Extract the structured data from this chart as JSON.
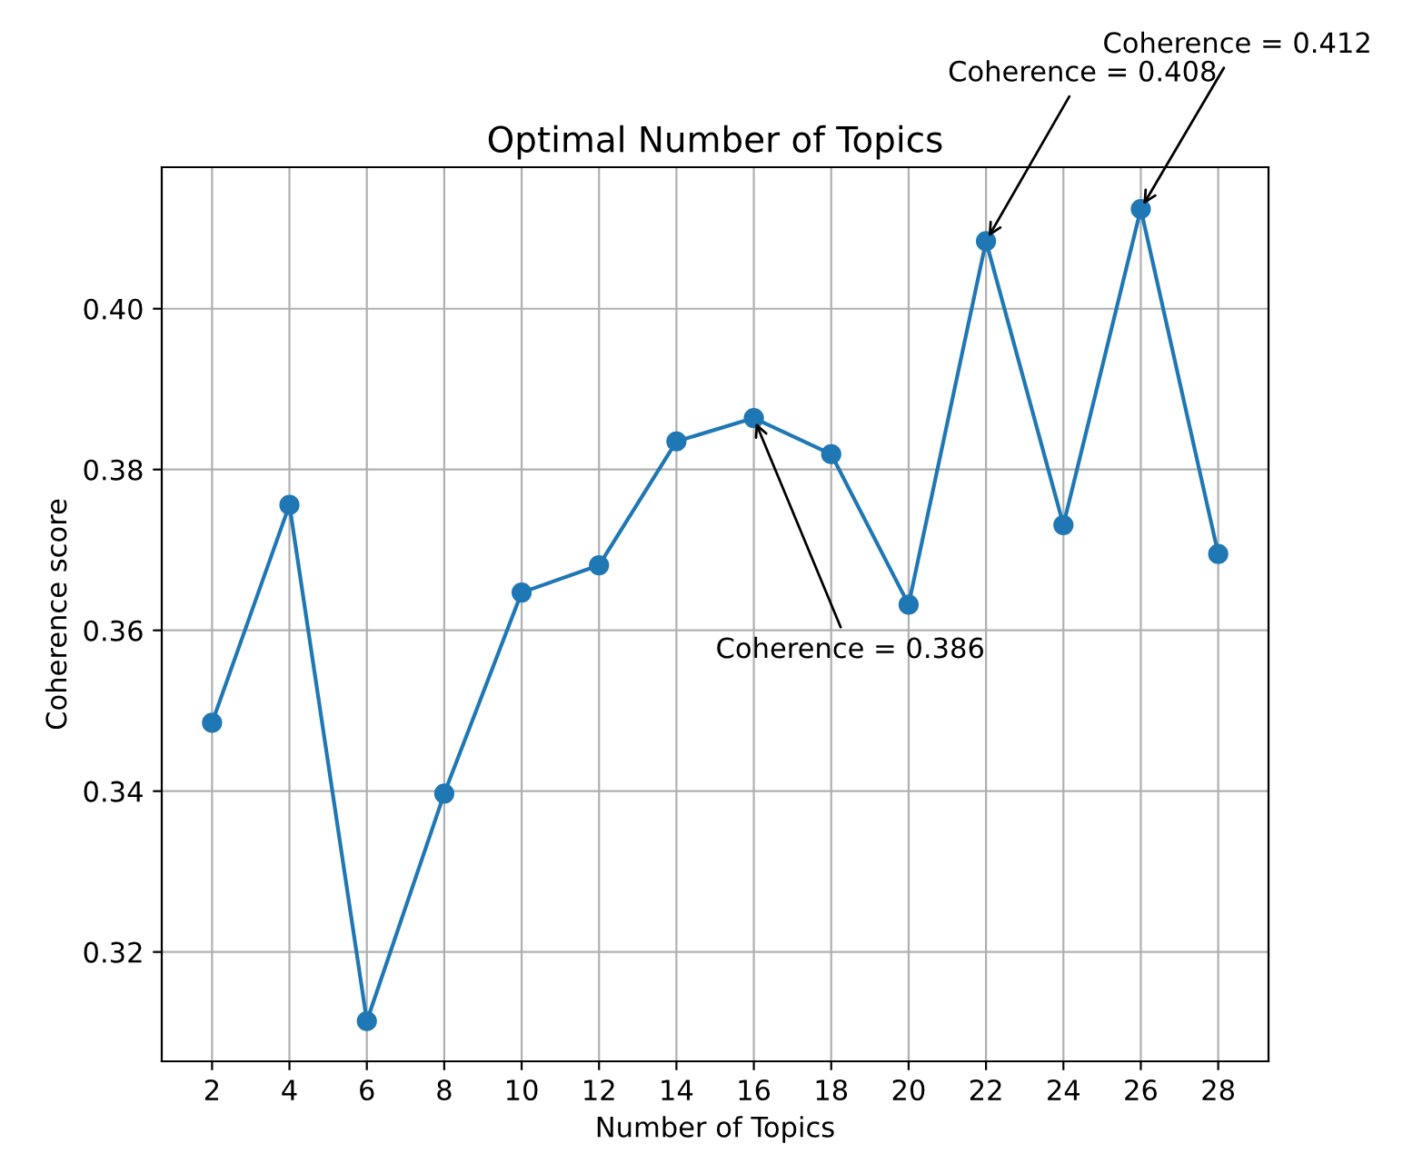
{
  "chart_data": {
    "type": "line",
    "title": "Optimal Number of Topics",
    "xlabel": "Number of Topics",
    "ylabel": "Coherence score",
    "x": [
      2,
      4,
      6,
      8,
      10,
      12,
      14,
      16,
      18,
      20,
      22,
      24,
      26,
      28
    ],
    "series": [
      {
        "color": "#1f77b4",
        "values": [
          0.3485,
          0.3756,
          0.3114,
          0.3397,
          0.3647,
          0.3681,
          0.3835,
          0.3864,
          0.3819,
          0.3632,
          0.4084,
          0.3731,
          0.4124,
          0.3695
        ]
      }
    ],
    "xlim": [
      0.7,
      29.3
    ],
    "ylim": [
      0.3064,
      0.4176
    ],
    "xticks": [
      2,
      4,
      6,
      8,
      10,
      12,
      14,
      16,
      18,
      20,
      22,
      24,
      26,
      28
    ],
    "yticks": [
      {
        "value": 0.32,
        "label": "0.32"
      },
      {
        "value": 0.34,
        "label": "0.34"
      },
      {
        "value": 0.36,
        "label": "0.36"
      },
      {
        "value": 0.38,
        "label": "0.38"
      },
      {
        "value": 0.4,
        "label": "0.40"
      }
    ],
    "annotations": [
      {
        "text": "Coherence = 0.386",
        "x": 16,
        "y": 0.3864
      },
      {
        "text": "Coherence = 0.408",
        "x": 22,
        "y": 0.4084
      },
      {
        "text": "Coherence = 0.412",
        "x": 26,
        "y": 0.4124
      }
    ],
    "grid": true,
    "marker": "circle",
    "line_style": "solid"
  }
}
